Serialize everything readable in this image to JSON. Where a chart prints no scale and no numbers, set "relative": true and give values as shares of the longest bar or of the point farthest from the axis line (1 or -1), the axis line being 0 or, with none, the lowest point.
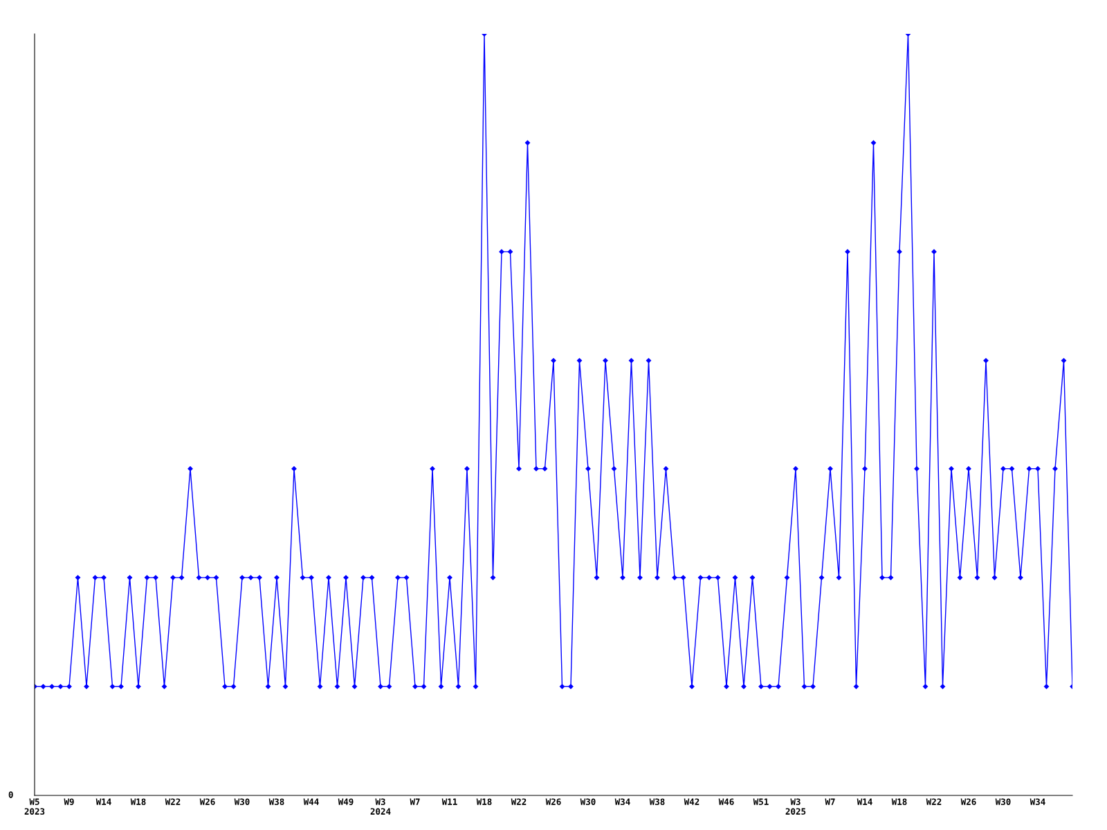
{
  "chart_data": {
    "type": "line",
    "relative": true,
    "marker": "diamond",
    "line_style": "solid",
    "grid": false,
    "annotations": [
      "0"
    ],
    "categories": [
      "W5\n2023",
      null,
      null,
      null,
      "W9",
      null,
      null,
      null,
      "W14",
      null,
      null,
      null,
      "W18",
      null,
      null,
      null,
      "W22",
      null,
      null,
      null,
      "W26",
      null,
      null,
      null,
      "W30",
      null,
      null,
      null,
      "W38",
      null,
      null,
      null,
      "W44",
      null,
      null,
      null,
      "W49",
      null,
      null,
      null,
      "W3\n2024",
      null,
      null,
      null,
      "W7",
      null,
      null,
      null,
      "W11",
      null,
      null,
      null,
      "W18",
      null,
      null,
      null,
      "W22",
      null,
      null,
      null,
      "W26",
      null,
      null,
      null,
      "W30",
      null,
      null,
      null,
      "W34",
      null,
      null,
      null,
      "W38",
      null,
      null,
      null,
      "W42",
      null,
      null,
      null,
      "W46",
      null,
      null,
      null,
      "W51",
      null,
      null,
      null,
      "W3\n2025",
      null,
      null,
      null,
      "W7",
      null,
      null,
      null,
      "W14",
      null,
      null,
      null,
      "W18",
      null,
      null,
      null,
      "W22",
      null,
      null,
      null,
      "W26",
      null,
      null,
      null,
      "W30",
      null,
      null,
      null,
      "W34",
      null,
      null,
      null,
      null
    ],
    "series": [
      {
        "color": "#0000ff",
        "values": [
          0.143,
          0.143,
          0.143,
          0.143,
          0.143,
          0.286,
          0.143,
          0.286,
          0.286,
          0.143,
          0.143,
          0.286,
          0.143,
          0.286,
          0.286,
          0.143,
          0.286,
          0.286,
          0.429,
          0.286,
          0.286,
          0.286,
          0.143,
          0.143,
          0.286,
          0.286,
          0.286,
          0.143,
          0.286,
          0.143,
          0.429,
          0.286,
          0.286,
          0.143,
          0.286,
          0.143,
          0.286,
          0.143,
          0.286,
          0.286,
          0.143,
          0.143,
          0.286,
          0.286,
          0.143,
          0.143,
          0.429,
          0.143,
          0.286,
          0.143,
          0.429,
          0.143,
          1,
          0.286,
          0.714,
          0.714,
          0.429,
          0.857,
          0.429,
          0.429,
          0.571,
          0.143,
          0.143,
          0.571,
          0.429,
          0.286,
          0.571,
          0.429,
          0.286,
          0.571,
          0.286,
          0.571,
          0.286,
          0.429,
          0.286,
          0.286,
          0.143,
          0.286,
          0.286,
          0.286,
          0.143,
          0.286,
          0.143,
          0.286,
          0.143,
          0.143,
          0.143,
          0.286,
          0.429,
          0.143,
          0.143,
          0.286,
          0.429,
          0.286,
          0.714,
          0.143,
          0.429,
          0.857,
          0.286,
          0.286,
          0.714,
          1,
          0.429,
          0.143,
          0.714,
          0.143,
          0.429,
          0.286,
          0.429,
          0.286,
          0.571,
          0.286,
          0.429,
          0.429,
          0.286,
          0.429,
          0.429,
          0.143,
          0.429,
          0.571,
          0.143
        ]
      }
    ]
  }
}
